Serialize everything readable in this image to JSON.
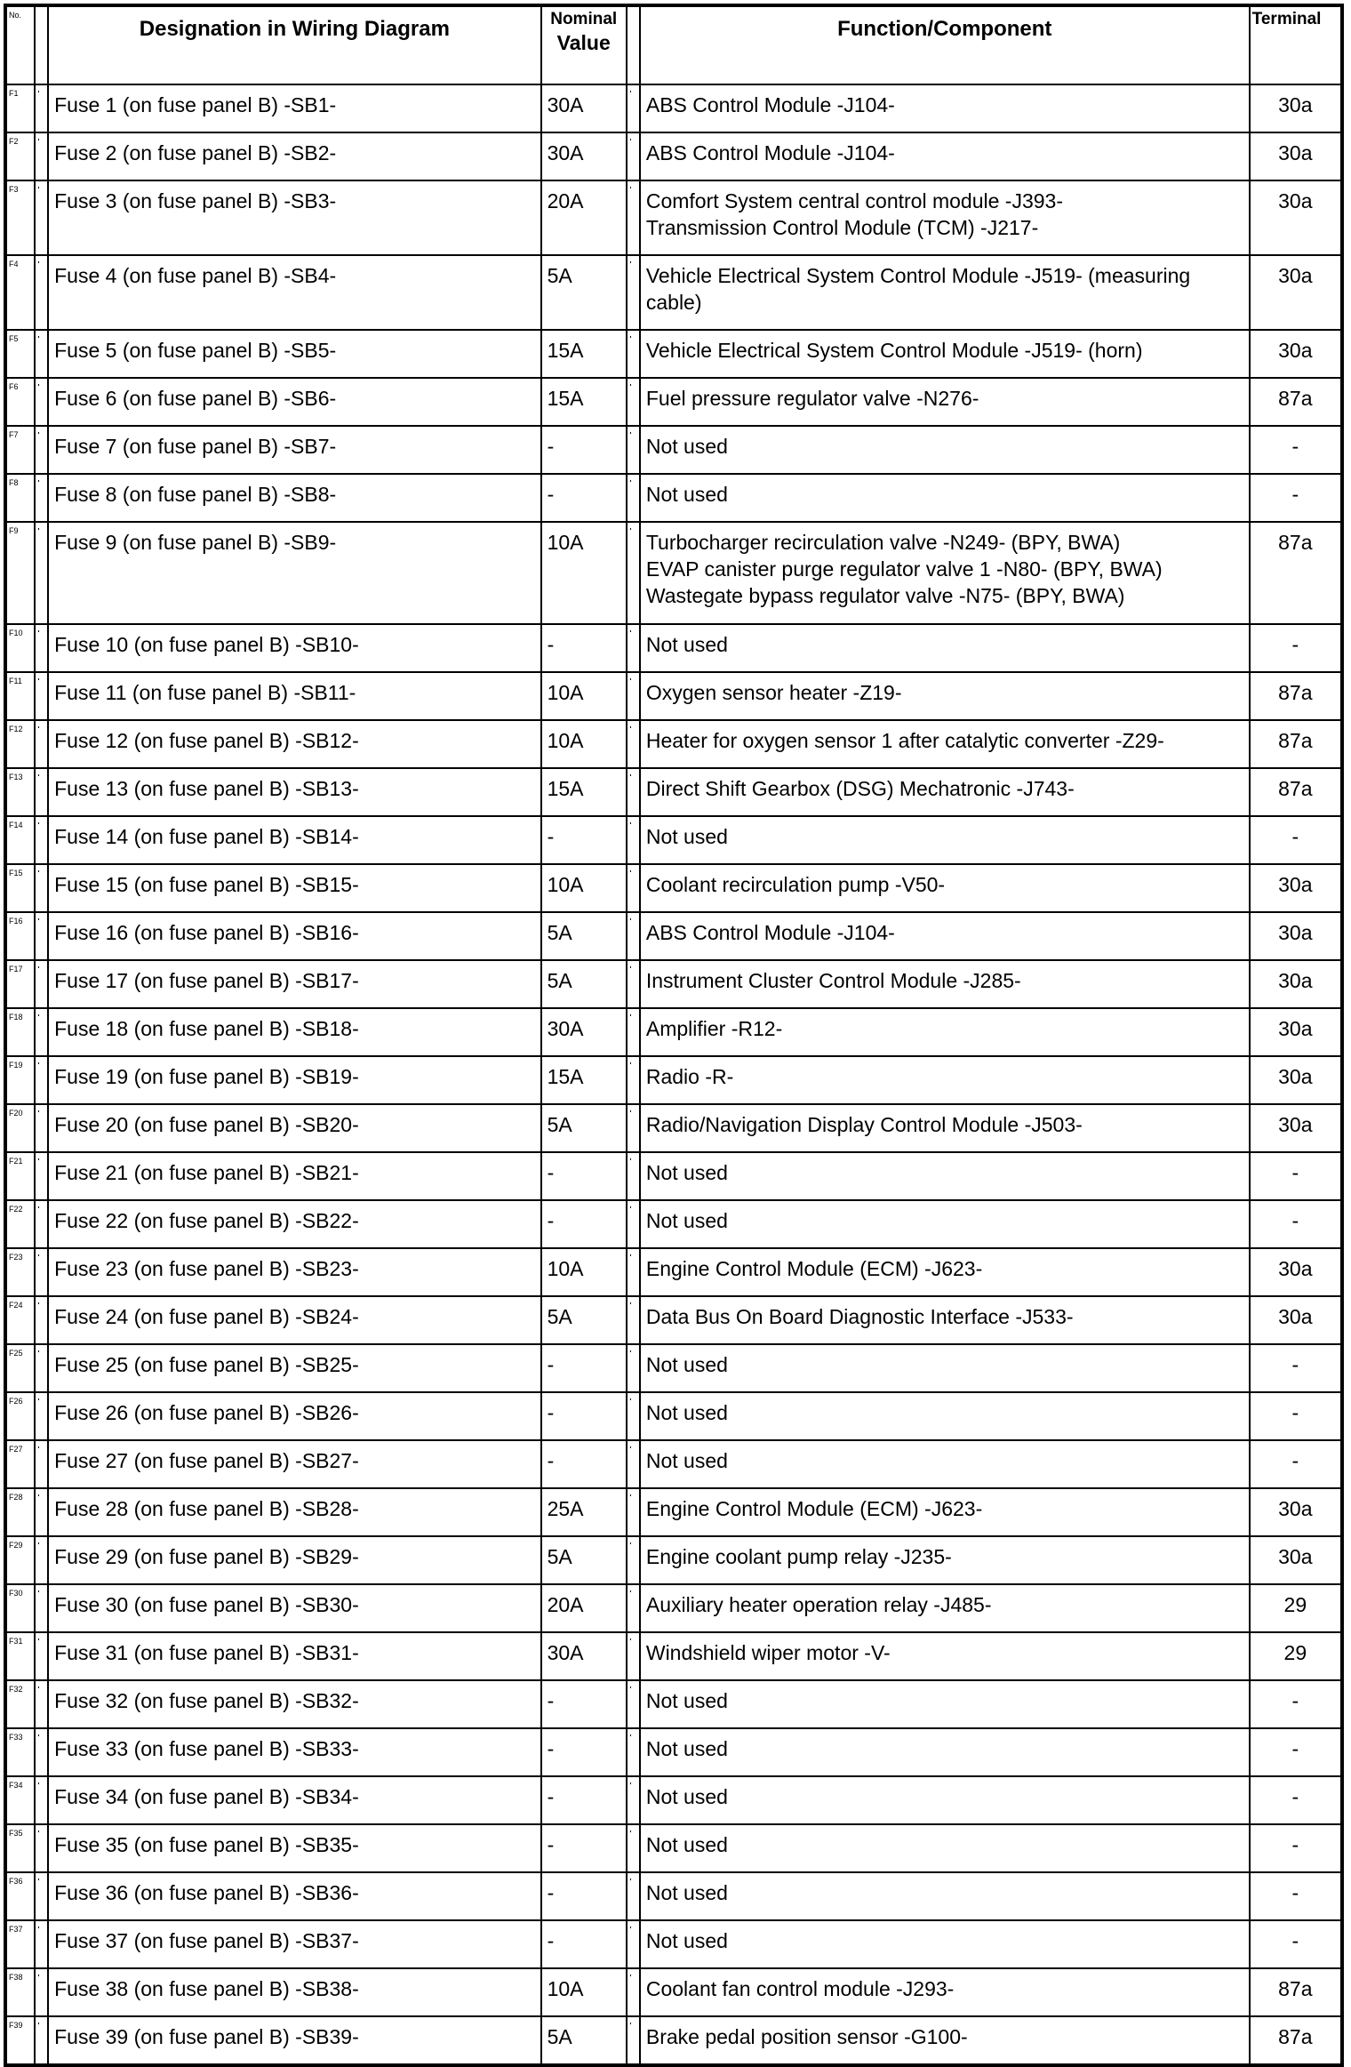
{
  "header": {
    "no": "No.",
    "designation": "Designation in Wiring Diagram",
    "nominal_line1": "Nominal",
    "nominal_line2": "Value",
    "function": "Function/Component",
    "terminal": "Terminal"
  },
  "rows": [
    {
      "no": "F1",
      "designation": "Fuse 1 (on fuse panel B) -SB1-",
      "value": "30A",
      "function": [
        "ABS Control Module -J104-"
      ],
      "terminal": "30a"
    },
    {
      "no": "F2",
      "designation": "Fuse 2 (on fuse panel B) -SB2-",
      "value": "30A",
      "function": [
        "ABS Control Module -J104-"
      ],
      "terminal": "30a"
    },
    {
      "no": "F3",
      "designation": "Fuse 3 (on fuse panel B) -SB3-",
      "value": "20A",
      "function": [
        "Comfort System central control module -J393-",
        "Transmission Control Module (TCM) -J217-"
      ],
      "terminal": "30a"
    },
    {
      "no": "F4",
      "designation": "Fuse 4 (on fuse panel B) -SB4-",
      "value": "5A",
      "function": [
        "Vehicle Electrical System Control Module -J519- (measuring",
        "cable)"
      ],
      "terminal": "30a"
    },
    {
      "no": "F5",
      "designation": "Fuse 5 (on fuse panel B) -SB5-",
      "value": "15A",
      "function": [
        "Vehicle Electrical System Control Module -J519- (horn)"
      ],
      "terminal": "30a"
    },
    {
      "no": "F6",
      "designation": "Fuse 6 (on fuse panel B) -SB6-",
      "value": "15A",
      "function": [
        "Fuel pressure regulator valve -N276-"
      ],
      "terminal": "87a"
    },
    {
      "no": "F7",
      "designation": "Fuse 7 (on fuse panel B) -SB7-",
      "value": "-",
      "function": [
        "Not used"
      ],
      "terminal": "-"
    },
    {
      "no": "F8",
      "designation": "Fuse 8 (on fuse panel B) -SB8-",
      "value": "-",
      "function": [
        "Not used"
      ],
      "terminal": "-"
    },
    {
      "no": "F9",
      "designation": "Fuse 9 (on fuse panel B) -SB9-",
      "value": "10A",
      "function": [
        "Turbocharger recirculation valve -N249- (BPY, BWA)",
        "EVAP canister purge regulator valve 1 -N80- (BPY, BWA)",
        "Wastegate bypass regulator valve -N75- (BPY, BWA)"
      ],
      "terminal": "87a"
    },
    {
      "no": "F10",
      "designation": "Fuse 10 (on fuse panel B) -SB10-",
      "value": "-",
      "function": [
        "Not used"
      ],
      "terminal": "-"
    },
    {
      "no": "F11",
      "designation": "Fuse 11 (on fuse panel B) -SB11-",
      "value": "10A",
      "function": [
        "Oxygen sensor heater -Z19-"
      ],
      "terminal": "87a"
    },
    {
      "no": "F12",
      "designation": "Fuse 12 (on fuse panel B) -SB12-",
      "value": "10A",
      "function": [
        "Heater for oxygen sensor 1 after catalytic converter -Z29-"
      ],
      "terminal": "87a"
    },
    {
      "no": "F13",
      "designation": "Fuse 13 (on fuse panel B) -SB13-",
      "value": "15A",
      "function": [
        "Direct Shift Gearbox (DSG) Mechatronic -J743-"
      ],
      "terminal": "87a"
    },
    {
      "no": "F14",
      "designation": "Fuse 14 (on fuse panel B) -SB14-",
      "value": "-",
      "function": [
        "Not used"
      ],
      "terminal": "-"
    },
    {
      "no": "F15",
      "designation": "Fuse 15 (on fuse panel B) -SB15-",
      "value": "10A",
      "function": [
        "Coolant recirculation pump -V50-"
      ],
      "terminal": "30a"
    },
    {
      "no": "F16",
      "designation": "Fuse 16 (on fuse panel B) -SB16-",
      "value": "5A",
      "function": [
        "ABS Control Module -J104-"
      ],
      "terminal": "30a"
    },
    {
      "no": "F17",
      "designation": "Fuse 17 (on fuse panel B) -SB17-",
      "value": "5A",
      "function": [
        "Instrument Cluster Control Module -J285-"
      ],
      "terminal": "30a"
    },
    {
      "no": "F18",
      "designation": "Fuse 18 (on fuse panel B) -SB18-",
      "value": "30A",
      "function": [
        "Amplifier -R12-"
      ],
      "terminal": "30a"
    },
    {
      "no": "F19",
      "designation": "Fuse 19 (on fuse panel B) -SB19-",
      "value": "15A",
      "function": [
        "Radio -R-"
      ],
      "terminal": "30a"
    },
    {
      "no": "F20",
      "designation": "Fuse 20 (on fuse panel B) -SB20-",
      "value": "5A",
      "function": [
        "Radio/Navigation Display Control Module -J503-"
      ],
      "terminal": "30a"
    },
    {
      "no": "F21",
      "designation": "Fuse 21 (on fuse panel B) -SB21-",
      "value": "-",
      "function": [
        "Not used"
      ],
      "terminal": "-"
    },
    {
      "no": "F22",
      "designation": "Fuse 22 (on fuse panel B) -SB22-",
      "value": "-",
      "function": [
        "Not used"
      ],
      "terminal": "-"
    },
    {
      "no": "F23",
      "designation": "Fuse 23 (on fuse panel B) -SB23-",
      "value": "10A",
      "function": [
        "Engine Control Module (ECM) -J623-"
      ],
      "terminal": "30a"
    },
    {
      "no": "F24",
      "designation": "Fuse 24 (on fuse panel B) -SB24-",
      "value": "5A",
      "function": [
        "Data Bus On Board Diagnostic Interface -J533-"
      ],
      "terminal": "30a"
    },
    {
      "no": "F25",
      "designation": "Fuse 25 (on fuse panel B) -SB25-",
      "value": "-",
      "function": [
        "Not used"
      ],
      "terminal": "-"
    },
    {
      "no": "F26",
      "designation": "Fuse 26 (on fuse panel B) -SB26-",
      "value": "-",
      "function": [
        "Not used"
      ],
      "terminal": "-"
    },
    {
      "no": "F27",
      "designation": "Fuse 27 (on fuse panel B) -SB27-",
      "value": "-",
      "function": [
        "Not used"
      ],
      "terminal": "-"
    },
    {
      "no": "F28",
      "designation": "Fuse 28 (on fuse panel B) -SB28-",
      "value": "25A",
      "function": [
        "Engine Control Module (ECM) -J623-"
      ],
      "terminal": "30a"
    },
    {
      "no": "F29",
      "designation": "Fuse 29 (on fuse panel B) -SB29-",
      "value": "5A",
      "function": [
        "Engine coolant pump relay -J235-"
      ],
      "terminal": "30a"
    },
    {
      "no": "F30",
      "designation": "Fuse 30 (on fuse panel B) -SB30-",
      "value": "20A",
      "function": [
        "Auxiliary heater operation relay -J485-"
      ],
      "terminal": "29"
    },
    {
      "no": "F31",
      "designation": "Fuse 31 (on fuse panel B) -SB31-",
      "value": "30A",
      "function": [
        "Windshield wiper motor -V-"
      ],
      "terminal": "29"
    },
    {
      "no": "F32",
      "designation": "Fuse 32 (on fuse panel B) -SB32-",
      "value": "-",
      "function": [
        "Not used"
      ],
      "terminal": "-"
    },
    {
      "no": "F33",
      "designation": "Fuse 33 (on fuse panel B) -SB33-",
      "value": "-",
      "function": [
        "Not used"
      ],
      "terminal": "-"
    },
    {
      "no": "F34",
      "designation": "Fuse 34 (on fuse panel B) -SB34-",
      "value": "-",
      "function": [
        "Not used"
      ],
      "terminal": "-"
    },
    {
      "no": "F35",
      "designation": "Fuse 35 (on fuse panel B) -SB35-",
      "value": "-",
      "function": [
        "Not used"
      ],
      "terminal": "-"
    },
    {
      "no": "F36",
      "designation": "Fuse 36 (on fuse panel B) -SB36-",
      "value": "-",
      "function": [
        "Not used"
      ],
      "terminal": "-"
    },
    {
      "no": "F37",
      "designation": "Fuse 37 (on fuse panel B) -SB37-",
      "value": "-",
      "function": [
        "Not used"
      ],
      "terminal": "-"
    },
    {
      "no": "F38",
      "designation": "Fuse 38 (on fuse panel B) -SB38-",
      "value": "10A",
      "function": [
        "Coolant fan control module -J293-"
      ],
      "terminal": "87a"
    },
    {
      "no": "F39",
      "designation": "Fuse 39 (on fuse panel B) -SB39-",
      "value": "5A",
      "function": [
        "Brake pedal position sensor -G100-"
      ],
      "terminal": "87a"
    }
  ]
}
